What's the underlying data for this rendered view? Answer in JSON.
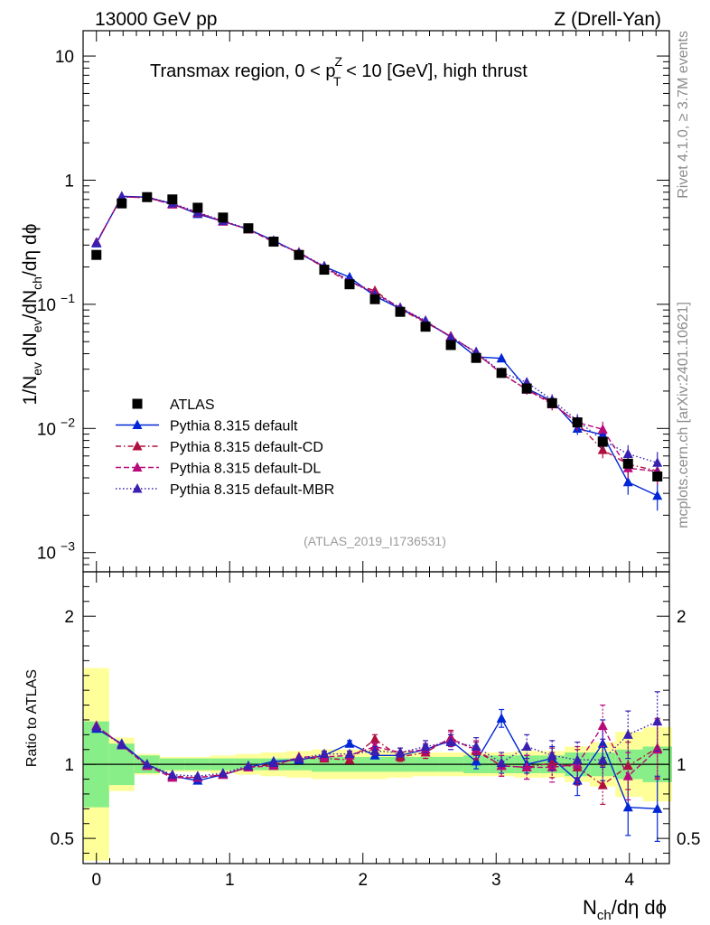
{
  "header": {
    "left": "13000 GeV pp",
    "right": "Z (Drell-Yan)"
  },
  "title": {
    "pre": "Transmax region, 0 < p",
    "sup": "Z",
    "sub": "T",
    "post": " < 10 [GeV], high thrust"
  },
  "side_labels": {
    "rivet": "Rivet 4.1.0, ≥ 3.7M events",
    "mcplots": "mcplots.cern.ch [arXiv:2401.10621]"
  },
  "watermark": "(ATLAS_2019_I1736531)",
  "ylabel_main": {
    "p1": "1/N",
    "s1": "ev",
    "p2": " dN",
    "s2": "ev",
    "p3": "/dN",
    "s3": "ch",
    "p4": "/dη dϕ"
  },
  "ylabel_ratio": "Ratio to ATLAS",
  "xlabel": {
    "p1": "N",
    "s1": "ch",
    "p2": "/dη dϕ"
  },
  "chart_data": {
    "type": "scatter",
    "main": {
      "yscale": "log",
      "ylim": [
        0.0007,
        16
      ],
      "yticks": [
        {
          "v": 10,
          "base": "10",
          "exp": ""
        },
        {
          "v": 1,
          "base": "1",
          "exp": ""
        },
        {
          "v": 0.1,
          "base": "10",
          "exp": "−1"
        },
        {
          "v": 0.01,
          "base": "10",
          "exp": "−2"
        },
        {
          "v": 0.001,
          "base": "10",
          "exp": "−3"
        }
      ]
    },
    "ratio": {
      "ylim": [
        0.33,
        2.3
      ],
      "yticks": [
        {
          "v": 0.5,
          "label": "0.5"
        },
        {
          "v": 1,
          "label": "1"
        },
        {
          "v": 2,
          "label": "2"
        }
      ]
    },
    "xlim": [
      -0.1,
      4.3
    ],
    "xticks": [
      {
        "v": 0,
        "label": "0"
      },
      {
        "v": 1,
        "label": "1"
      },
      {
        "v": 2,
        "label": "2"
      },
      {
        "v": 3,
        "label": "3"
      },
      {
        "v": 4,
        "label": "4"
      }
    ],
    "x": [
      0.0,
      0.19,
      0.38,
      0.57,
      0.76,
      0.95,
      1.14,
      1.33,
      1.52,
      1.71,
      1.9,
      2.09,
      2.28,
      2.47,
      2.66,
      2.85,
      3.04,
      3.23,
      3.42,
      3.61,
      3.8,
      3.99,
      4.21
    ],
    "atlas": [
      0.25,
      0.65,
      0.73,
      0.7,
      0.6,
      0.5,
      0.41,
      0.32,
      0.25,
      0.19,
      0.145,
      0.11,
      0.087,
      0.066,
      0.047,
      0.037,
      0.028,
      0.021,
      0.016,
      0.0112,
      0.0078,
      0.0052,
      0.0041
    ],
    "atlas_band_stat": [
      0.29,
      0.14,
      0.06,
      0.04,
      0.04,
      0.04,
      0.04,
      0.04,
      0.04,
      0.05,
      0.05,
      0.05,
      0.05,
      0.05,
      0.05,
      0.06,
      0.06,
      0.06,
      0.06,
      0.08,
      0.08,
      0.1,
      0.12
    ],
    "atlas_band_tot": [
      0.65,
      0.18,
      0.07,
      0.05,
      0.05,
      0.06,
      0.07,
      0.08,
      0.09,
      0.1,
      0.1,
      0.1,
      0.09,
      0.08,
      0.08,
      0.08,
      0.08,
      0.09,
      0.09,
      0.12,
      0.15,
      0.22,
      0.25
    ],
    "legend": [
      {
        "label": "ATLAS",
        "color": "#000000",
        "marker": "square",
        "dash": ""
      },
      {
        "label": "Pythia 8.315 default",
        "color": "#0026d6",
        "marker": "triangle",
        "dash": ""
      },
      {
        "label": "Pythia 8.315 default-CD",
        "color": "#b0103e",
        "marker": "triangle",
        "dash": "6,3,1.5,3"
      },
      {
        "label": "Pythia 8.315 default-DL",
        "color": "#b80a7a",
        "marker": "triangle",
        "dash": "6,3"
      },
      {
        "label": "Pythia 8.315 default-MBR",
        "color": "#3a1fb0",
        "marker": "triangle",
        "dash": "1.5,2.5"
      }
    ],
    "series": [
      {
        "name": "Pythia 8.315 default",
        "color": "#0026d6",
        "dash": "",
        "ratio": [
          1.24,
          1.14,
          1.0,
          0.92,
          0.89,
          0.93,
          0.98,
          1.02,
          1.03,
          1.06,
          1.14,
          1.06,
          1.06,
          1.1,
          1.16,
          1.02,
          1.31,
          1.0,
          1.04,
          0.89,
          1.14,
          0.71,
          0.7
        ],
        "err": [
          0.01,
          0.01,
          0.01,
          0.01,
          0.01,
          0.01,
          0.01,
          0.01,
          0.01,
          0.02,
          0.02,
          0.02,
          0.02,
          0.03,
          0.04,
          0.05,
          0.06,
          0.06,
          0.08,
          0.1,
          0.16,
          0.19,
          0.22
        ]
      },
      {
        "name": "Pythia 8.315 default-CD",
        "color": "#b0103e",
        "dash": "6,3,1.5,3",
        "ratio": [
          1.26,
          1.13,
          0.99,
          0.92,
          0.91,
          0.93,
          0.98,
          1.0,
          1.04,
          1.04,
          1.03,
          1.17,
          1.05,
          1.08,
          1.18,
          1.09,
          0.99,
          0.98,
          1.01,
          0.98,
          0.86,
          0.99,
          1.11
        ],
        "err": [
          0.01,
          0.01,
          0.01,
          0.01,
          0.01,
          0.01,
          0.01,
          0.01,
          0.01,
          0.02,
          0.02,
          0.03,
          0.03,
          0.04,
          0.05,
          0.06,
          0.07,
          0.08,
          0.1,
          0.12,
          0.13,
          0.16,
          0.2
        ]
      },
      {
        "name": "Pythia 8.315 default-DL",
        "color": "#b80a7a",
        "dash": "6,3",
        "ratio": [
          1.26,
          1.13,
          0.99,
          0.91,
          0.91,
          0.93,
          0.98,
          0.99,
          1.05,
          1.05,
          1.06,
          1.12,
          1.08,
          1.1,
          1.17,
          1.1,
          0.99,
          0.98,
          0.98,
          1.0,
          1.26,
          0.92,
          1.1
        ],
        "err": [
          0.01,
          0.01,
          0.01,
          0.01,
          0.01,
          0.01,
          0.01,
          0.01,
          0.01,
          0.02,
          0.02,
          0.03,
          0.03,
          0.04,
          0.05,
          0.06,
          0.07,
          0.08,
          0.1,
          0.12,
          0.14,
          0.16,
          0.2
        ]
      },
      {
        "name": "Pythia 8.315 default-MBR",
        "color": "#3a1fb0",
        "dash": "1.5,2.5",
        "ratio": [
          1.25,
          1.13,
          1.0,
          0.93,
          0.92,
          0.94,
          0.99,
          1.01,
          1.04,
          1.07,
          1.07,
          1.09,
          1.08,
          1.12,
          1.15,
          1.12,
          1.01,
          1.12,
          1.06,
          1.03,
          1.03,
          1.2,
          1.29
        ],
        "err": [
          0.01,
          0.01,
          0.01,
          0.01,
          0.01,
          0.01,
          0.01,
          0.01,
          0.01,
          0.02,
          0.02,
          0.03,
          0.03,
          0.04,
          0.05,
          0.06,
          0.07,
          0.08,
          0.1,
          0.12,
          0.14,
          0.16,
          0.2
        ]
      }
    ]
  }
}
